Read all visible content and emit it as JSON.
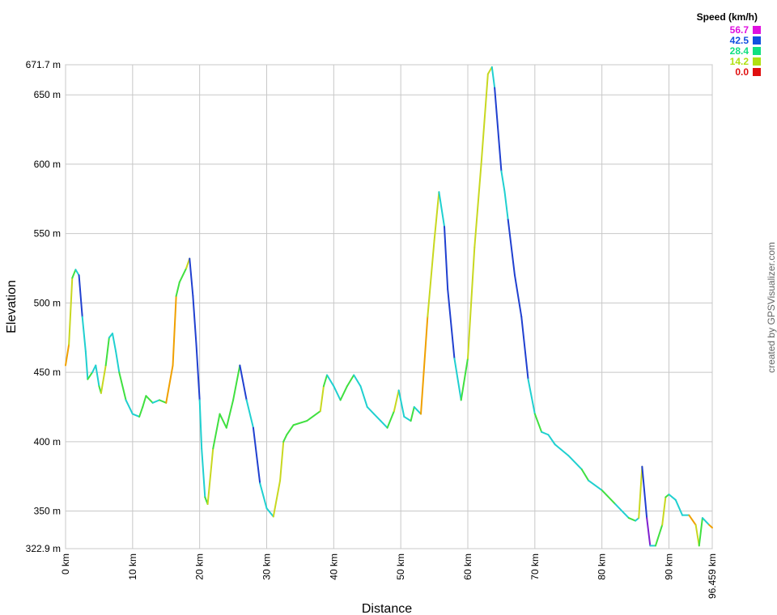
{
  "chart_data": {
    "type": "line",
    "x_label": "Distance",
    "y_label": "Elevation",
    "credit": "created by GPSVisualizer.com",
    "xlim": [
      0,
      96.459
    ],
    "ylim": [
      322.9,
      671.7
    ],
    "xticks": [
      {
        "value": 0,
        "label": "0 km"
      },
      {
        "value": 10,
        "label": "10 km"
      },
      {
        "value": 20,
        "label": "20 km"
      },
      {
        "value": 30,
        "label": "30 km"
      },
      {
        "value": 40,
        "label": "40 km"
      },
      {
        "value": 50,
        "label": "50 km"
      },
      {
        "value": 60,
        "label": "60 km"
      },
      {
        "value": 70,
        "label": "70 km"
      },
      {
        "value": 80,
        "label": "80 km"
      },
      {
        "value": 90,
        "label": "90 km"
      },
      {
        "value": 96.459,
        "label": "96.459 km"
      }
    ],
    "yticks": [
      {
        "value": 322.9,
        "label": "322.9 m"
      },
      {
        "value": 350,
        "label": "350 m"
      },
      {
        "value": 400,
        "label": "400 m"
      },
      {
        "value": 450,
        "label": "450 m"
      },
      {
        "value": 500,
        "label": "500 m"
      },
      {
        "value": 550,
        "label": "550 m"
      },
      {
        "value": 600,
        "label": "600 m"
      },
      {
        "value": 650,
        "label": "650 m"
      },
      {
        "value": 671.7,
        "label": "671.7 m"
      }
    ],
    "grid": true,
    "speed_legend": {
      "title": "Speed (km/h)",
      "values": [
        56.7,
        42.5,
        28.4,
        14.2,
        0.0
      ],
      "labels": [
        "56.7",
        "42.5",
        "28.4",
        "14.2",
        "0.0"
      ],
      "colors": [
        "#e010e0",
        "#1050e0",
        "#10e080",
        "#b0e010",
        "#e01010"
      ]
    },
    "x": [
      0,
      0.5,
      1,
      1.5,
      2,
      2.5,
      3,
      3.3,
      4,
      4.5,
      5,
      5.3,
      6,
      6.5,
      7,
      7.5,
      8,
      9,
      10,
      11,
      11.5,
      12,
      13,
      14,
      15,
      16,
      16.5,
      17,
      18,
      18.5,
      19,
      19.5,
      20,
      20.3,
      20.8,
      21.2,
      22,
      23,
      24,
      25,
      26,
      27,
      28,
      29,
      30,
      31,
      32,
      32.5,
      33,
      34,
      36,
      38,
      38.5,
      39,
      40,
      41,
      42,
      43,
      44,
      45,
      46,
      47,
      48,
      49,
      49.7,
      50.5,
      51.5,
      52,
      53,
      54,
      55,
      55.7,
      56.5,
      57,
      58,
      59,
      60,
      61,
      62,
      63,
      63.6,
      64,
      65,
      65.5,
      66,
      67,
      68,
      69,
      70,
      71,
      72,
      73,
      75,
      77,
      78,
      80,
      82,
      84,
      85,
      85.5,
      86,
      86.7,
      87.2,
      88,
      89,
      89.5,
      90,
      91,
      92,
      93,
      94,
      94.5,
      95,
      96,
      96.459
    ],
    "series": [
      {
        "values": [
          455,
          470,
          518,
          524,
          520,
          490,
          465,
          445,
          450,
          455,
          440,
          435,
          455,
          475,
          478,
          465,
          450,
          430,
          420,
          418,
          425,
          433,
          428,
          430,
          428,
          455,
          505,
          515,
          525,
          532,
          505,
          470,
          430,
          395,
          360,
          355,
          395,
          420,
          410,
          430,
          455,
          430,
          410,
          370,
          352,
          346,
          372,
          400,
          405,
          412,
          415,
          422,
          440,
          448,
          440,
          430,
          440,
          448,
          440,
          425,
          420,
          415,
          410,
          422,
          437,
          418,
          415,
          425,
          420,
          490,
          545,
          580,
          555,
          510,
          460,
          430,
          460,
          540,
          600,
          665,
          670,
          655,
          595,
          580,
          560,
          520,
          490,
          445,
          420,
          407,
          405,
          398,
          390,
          380,
          372,
          365,
          355,
          345,
          343,
          345,
          382,
          345,
          325,
          325,
          340,
          360,
          362,
          358,
          347,
          347,
          340,
          325,
          345,
          340,
          338
        ],
        "point_colors": [
          "#c8d820",
          "#f0a000",
          "#c8d820",
          "#40e040",
          "#20d0d0",
          "#2040d0",
          "#20d0d0",
          "#20d0d0",
          "#40e040",
          "#20d0d0",
          "#20d0d0",
          "#40e040",
          "#c8d820",
          "#40e040",
          "#20d0d0",
          "#20d0d0",
          "#20d0d0",
          "#40e040",
          "#20d0d0",
          "#20d0d0",
          "#40e040",
          "#40e040",
          "#40e040",
          "#20d0d0",
          "#40e040",
          "#f0a000",
          "#f0a000",
          "#40e040",
          "#40e040",
          "#c8d820",
          "#2040d0",
          "#2040d0",
          "#2040d0",
          "#20d0d0",
          "#20d0d0",
          "#40e040",
          "#c8d820",
          "#40e040",
          "#40e040",
          "#40e040",
          "#40e040",
          "#2040d0",
          "#20d0d0",
          "#2040d0",
          "#20d0d0",
          "#20d0d0",
          "#c8d820",
          "#c8d820",
          "#40e040",
          "#40e040",
          "#40e040",
          "#40e040",
          "#c8d820",
          "#40e040",
          "#20d0d0",
          "#20d0d0",
          "#40e040",
          "#40e040",
          "#20d0d0",
          "#20d0d0",
          "#20d0d0",
          "#20d0d0",
          "#20d0d0",
          "#40e040",
          "#c8d820",
          "#20d0d0",
          "#20d0d0",
          "#40e040",
          "#20d0d0",
          "#f0a000",
          "#c8d820",
          "#c8d820",
          "#20d0d0",
          "#2040d0",
          "#2040d0",
          "#20d0d0",
          "#40e040",
          "#c8d820",
          "#c8d820",
          "#c8d820",
          "#c8d820",
          "#20d0d0",
          "#2040d0",
          "#20d0d0",
          "#20d0d0",
          "#2040d0",
          "#2040d0",
          "#2040d0",
          "#20d0d0",
          "#40e040",
          "#20d0d0",
          "#20d0d0",
          "#20d0d0",
          "#20d0d0",
          "#40e040",
          "#20d0d0",
          "#40e040",
          "#20d0d0",
          "#40e040",
          "#20d0d0",
          "#c8d820",
          "#2040d0",
          "#8020d0",
          "#20d0d0",
          "#40e040",
          "#c8d820",
          "#40e040",
          "#20d0d0",
          "#20d0d0",
          "#20d0d0",
          "#f0a000",
          "#c8d820",
          "#40e040",
          "#20d0d0",
          "#f0a000"
        ]
      }
    ]
  }
}
